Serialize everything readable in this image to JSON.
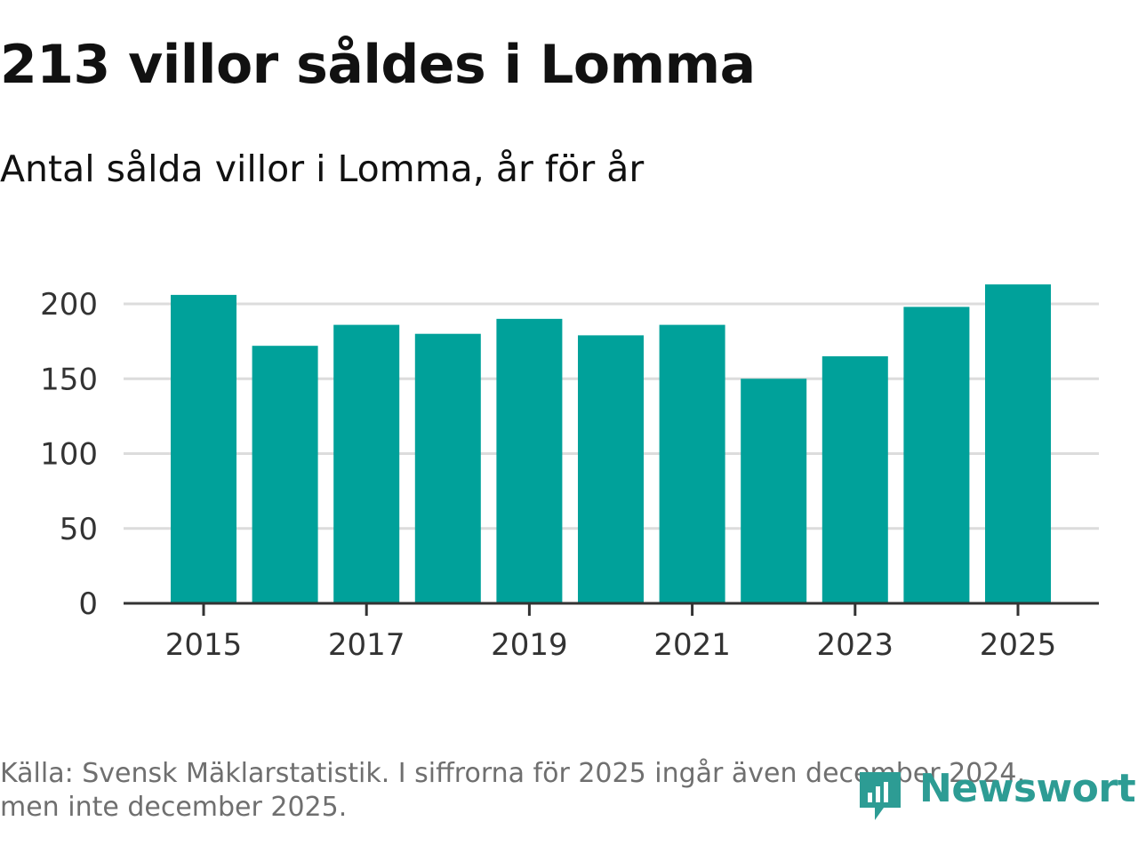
{
  "header": {
    "title": "213 villor såldes i Lomma",
    "subtitle": "Antal sålda villor i Lomma, år för år"
  },
  "chart_data": {
    "type": "bar",
    "title": "213 villor såldes i Lomma",
    "subtitle": "Antal sålda villor i Lomma, år för år",
    "xlabel": "",
    "ylabel": "",
    "categories": [
      "2015",
      "2016",
      "2017",
      "2018",
      "2019",
      "2020",
      "2021",
      "2022",
      "2023",
      "2024",
      "2025"
    ],
    "values": [
      206,
      172,
      186,
      180,
      190,
      179,
      186,
      150,
      165,
      198,
      213
    ],
    "x_tick_labels": [
      "2015",
      "2017",
      "2019",
      "2021",
      "2023",
      "2025"
    ],
    "y_ticks": [
      0,
      50,
      100,
      150,
      200
    ],
    "ylim": [
      0,
      215
    ],
    "grid": true,
    "bar_color": "#00a19a"
  },
  "footer": {
    "source": "Källa: Svensk Mäklarstatistik. I siffrorna för 2025 ingår även december 2024, men inte december 2025.",
    "logo_text": "Newsworthy",
    "logo_color": "#2d9c94"
  }
}
